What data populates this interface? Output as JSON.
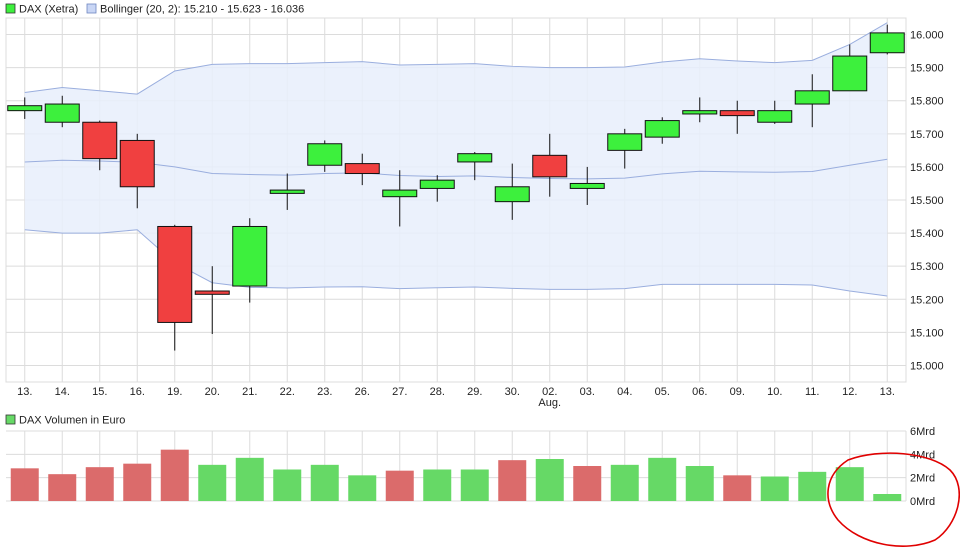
{
  "legend": {
    "dax_label": "DAX (Xetra)",
    "bollinger_label": "Bollinger (20, 2): 15.210 - 15.623 - 16.036",
    "volume_label": "DAX Volumen in Euro"
  },
  "colors": {
    "up": "#3df03d",
    "down": "#f04040",
    "band_fill": "#e8eefc",
    "band_line": "#9aaede",
    "vol_up": "#66d966",
    "vol_down": "#db6b6b",
    "grid": "#dcdcdc",
    "annotation": "#e00000"
  },
  "chart_data": [
    {
      "type": "candlestick",
      "title": "DAX (Xetra)",
      "categories": [
        "13.",
        "14.",
        "15.",
        "16.",
        "19.",
        "20.",
        "21.",
        "22.",
        "23.",
        "26.",
        "27.",
        "28.",
        "29.",
        "30.",
        "02.",
        "03.",
        "04.",
        "05.",
        "06.",
        "09.",
        "10.",
        "11.",
        "12.",
        "13."
      ],
      "month_labels": [
        {
          "index": 14,
          "label": "Aug."
        }
      ],
      "ylim": [
        14950,
        16050
      ],
      "yticks": [
        "15.000",
        "15.100",
        "15.200",
        "15.300",
        "15.400",
        "15.500",
        "15.600",
        "15.700",
        "15.800",
        "15.900",
        "16.000"
      ],
      "ytick_values": [
        15000,
        15100,
        15200,
        15300,
        15400,
        15500,
        15600,
        15700,
        15800,
        15900,
        16000
      ],
      "open": [
        15770,
        15735,
        15735,
        15680,
        15420,
        15225,
        15240,
        15520,
        15605,
        15610,
        15510,
        15535,
        15615,
        15495,
        15635,
        15535,
        15650,
        15690,
        15760,
        15770,
        15735,
        15790,
        15830,
        15945
      ],
      "high": [
        15810,
        15815,
        15740,
        15700,
        15425,
        15300,
        15445,
        15580,
        15680,
        15640,
        15590,
        15575,
        15645,
        15610,
        15700,
        15600,
        15715,
        15750,
        15810,
        15800,
        15800,
        15880,
        15970,
        16030
      ],
      "low": [
        15745,
        15720,
        15590,
        15475,
        15045,
        15095,
        15190,
        15470,
        15585,
        15545,
        15420,
        15495,
        15560,
        15440,
        15510,
        15485,
        15595,
        15670,
        15735,
        15700,
        15730,
        15720,
        15830,
        15940
      ],
      "close": [
        15785,
        15790,
        15625,
        15540,
        15130,
        15215,
        15420,
        15530,
        15670,
        15580,
        15530,
        15560,
        15640,
        15540,
        15570,
        15550,
        15700,
        15740,
        15770,
        15755,
        15770,
        15830,
        15935,
        16005
      ],
      "bollinger": {
        "label": "Bollinger (20, 2): 15.210 - 15.623 - 16.036",
        "upper": [
          15825,
          15840,
          15830,
          15820,
          15890,
          15910,
          15912,
          15912,
          15915,
          15918,
          15908,
          15910,
          15912,
          15904,
          15900,
          15900,
          15902,
          15917,
          15927,
          15920,
          15915,
          15922,
          15970,
          16036
        ],
        "middle": [
          15615,
          15620,
          15618,
          15614,
          15600,
          15580,
          15577,
          15575,
          15580,
          15582,
          15574,
          15571,
          15573,
          15568,
          15565,
          15564,
          15566,
          15579,
          15587,
          15585,
          15584,
          15586,
          15605,
          15623
        ],
        "lower": [
          15410,
          15400,
          15400,
          15410,
          15310,
          15250,
          15236,
          15234,
          15237,
          15238,
          15232,
          15235,
          15237,
          15233,
          15230,
          15230,
          15232,
          15245,
          15245,
          15245,
          15245,
          15243,
          15225,
          15210
        ]
      }
    },
    {
      "type": "bar",
      "title": "DAX Volumen in Euro",
      "categories": [
        "13.",
        "14.",
        "15.",
        "16.",
        "19.",
        "20.",
        "21.",
        "22.",
        "23.",
        "26.",
        "27.",
        "28.",
        "29.",
        "30.",
        "02.",
        "03.",
        "04.",
        "05.",
        "06.",
        "09.",
        "10.",
        "11.",
        "12.",
        "13."
      ],
      "ylim": [
        0,
        6
      ],
      "yticks": [
        "0Mrd",
        "2Mrd",
        "4Mrd",
        "6Mrd"
      ],
      "ytick_values": [
        0,
        2,
        4,
        6
      ],
      "values": [
        2.8,
        2.3,
        2.9,
        3.2,
        4.4,
        3.1,
        3.7,
        2.7,
        3.1,
        2.2,
        2.6,
        2.7,
        2.7,
        3.5,
        3.6,
        3.0,
        3.1,
        3.7,
        3.0,
        2.2,
        2.1,
        2.5,
        2.9,
        0.6
      ],
      "direction": [
        "down",
        "down",
        "down",
        "down",
        "down",
        "up",
        "up",
        "up",
        "up",
        "up",
        "down",
        "up",
        "up",
        "down",
        "up",
        "down",
        "up",
        "up",
        "up",
        "down",
        "up",
        "up",
        "up",
        "up"
      ]
    }
  ]
}
